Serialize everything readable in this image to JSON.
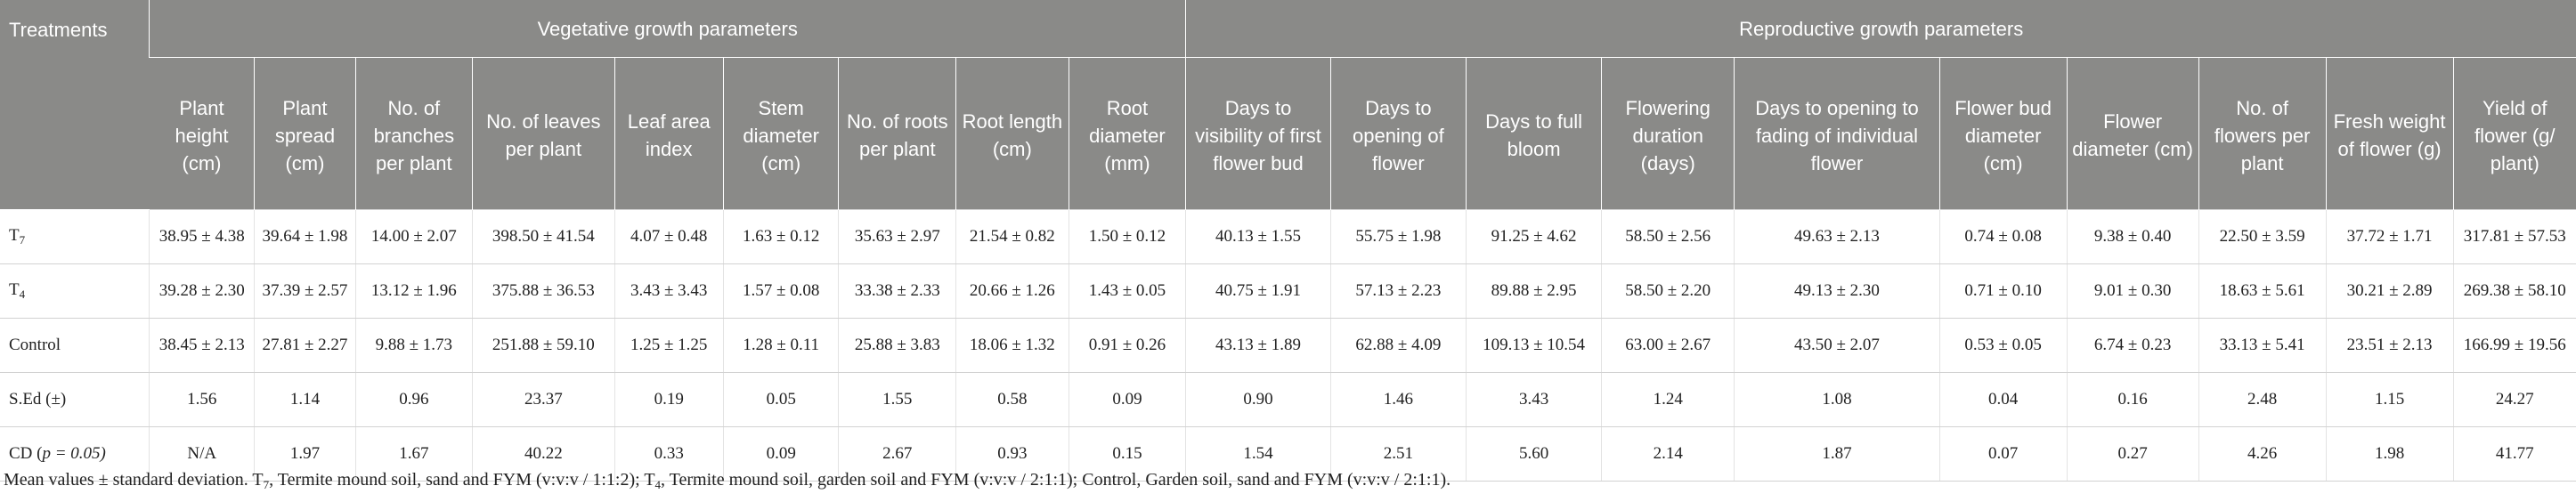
{
  "table": {
    "treatments_header": "Treatments",
    "group_headers": [
      "Vegetative growth parameters",
      "Reproductive growth parameters"
    ],
    "column_headers": [
      "Plant height (cm)",
      "Plant spread (cm)",
      "No. of branches per plant",
      "No. of leaves per plant",
      "Leaf area index",
      "Stem diameter (cm)",
      "No. of roots per plant",
      "Root length (cm)",
      "Root diameter (mm)",
      "Days to visibility of first flower bud",
      "Days to opening of flower",
      "Days to full bloom",
      "Flowering duration (days)",
      "Days to opening to fading of individual flower",
      "Flower bud diameter (cm)",
      "Flower diameter (cm)",
      "No. of flowers per plant",
      "Fresh weight of flower (g)",
      "Yield of flower (g/ plant)"
    ],
    "rows": [
      {
        "label_main": "T",
        "label_sub": "7",
        "label_rest": "",
        "cells": [
          "38.95 ± 4.38",
          "39.64 ± 1.98",
          "14.00 ± 2.07",
          "398.50 ± 41.54",
          "4.07 ± 0.48",
          "1.63 ± 0.12",
          "35.63 ± 2.97",
          "21.54 ± 0.82",
          "1.50 ± 0.12",
          "40.13 ± 1.55",
          "55.75 ± 1.98",
          "91.25 ± 4.62",
          "58.50 ± 2.56",
          "49.63 ± 2.13",
          "0.74 ± 0.08",
          "9.38 ± 0.40",
          "22.50 ± 3.59",
          "37.72 ± 1.71",
          "317.81 ± 57.53"
        ]
      },
      {
        "label_main": "T",
        "label_sub": "4",
        "label_rest": "",
        "cells": [
          "39.28 ± 2.30",
          "37.39 ± 2.57",
          "13.12 ± 1.96",
          "375.88 ± 36.53",
          "3.43 ± 3.43",
          "1.57 ± 0.08",
          "33.38 ± 2.33",
          "20.66 ± 1.26",
          "1.43 ± 0.05",
          "40.75 ± 1.91",
          "57.13 ± 2.23",
          "89.88 ± 2.95",
          "58.50 ± 2.20",
          "49.13 ± 2.30",
          "0.71 ± 0.10",
          "9.01 ± 0.30",
          "18.63 ± 5.61",
          "30.21 ± 2.89",
          "269.38 ± 58.10"
        ]
      },
      {
        "label_main": "Control",
        "label_sub": "",
        "label_rest": "",
        "cells": [
          "38.45 ± 2.13",
          "27.81 ± 2.27",
          "9.88 ± 1.73",
          "251.88 ± 59.10",
          "1.25 ± 1.25",
          "1.28 ± 0.11",
          "25.88 ± 3.83",
          "18.06 ± 1.32",
          "0.91 ± 0.26",
          "43.13 ± 1.89",
          "62.88 ± 4.09",
          "109.13 ± 10.54",
          "63.00 ± 2.67",
          "43.50 ± 2.07",
          "0.53 ± 0.05",
          "6.74 ± 0.23",
          "33.13 ± 5.41",
          "23.51 ± 2.13",
          "166.99 ± 19.56"
        ]
      },
      {
        "label_main": "S.Ed (±)",
        "label_sub": "",
        "label_rest": "",
        "cells": [
          "1.56",
          "1.14",
          "0.96",
          "23.37",
          "0.19",
          "0.05",
          "1.55",
          "0.58",
          "0.09",
          "0.90",
          "1.46",
          "3.43",
          "1.24",
          "1.08",
          "0.04",
          "0.16",
          "2.48",
          "1.15",
          "24.27"
        ]
      },
      {
        "label_main": "CD (",
        "label_sub": "",
        "label_rest": "p = 0.05)",
        "cells": [
          "N/A",
          "1.97",
          "1.67",
          "40.22",
          "0.33",
          "0.09",
          "2.67",
          "0.93",
          "0.15",
          "1.54",
          "2.51",
          "5.60",
          "2.14",
          "1.87",
          "0.07",
          "0.27",
          "4.26",
          "1.98",
          "41.77"
        ]
      }
    ]
  },
  "footnote": {
    "part1": "Mean values ± standard deviation. T",
    "sub1": "7",
    "part2": ", Termite mound soil, sand and FYM (v:v:v / 1:1:2); T",
    "sub2": "4",
    "part3": ", Termite mound soil, garden soil and FYM (v:v:v / 2:1:1); Control, Garden soil, sand and FYM (v:v:v / 2:1:1)."
  }
}
